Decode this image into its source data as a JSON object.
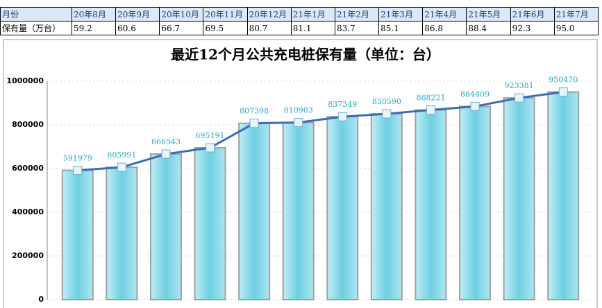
{
  "table": {
    "header": [
      "月份",
      "20年8月",
      "20年9月",
      "20年10月",
      "20年11月",
      "20年12月",
      "21年1月",
      "21年2月",
      "21年3月",
      "21年4月",
      "21年5月",
      "21年6月",
      "21年7月"
    ],
    "rows": [
      [
        "保有量（万台）",
        "59.2",
        "60.6",
        "66.7",
        "69.5",
        "80.7",
        "81.1",
        "83.7",
        "85.1",
        "86.8",
        "88.4",
        "92.3",
        "95.0"
      ]
    ]
  },
  "chart_data": {
    "type": "bar",
    "title": "最近12个月公共充电桩保有量（单位：台）",
    "values": [
      591979,
      605991,
      666543,
      695191,
      807398,
      810903,
      837349,
      850590,
      868221,
      884409,
      923381,
      950470
    ],
    "color": "#7fd6e6",
    "line": true,
    "line_color": "#3b6db3",
    "ylim": [
      0,
      1000000
    ],
    "yticks": [
      0,
      200000,
      400000,
      600000,
      800000,
      1000000
    ],
    "grid": true
  }
}
